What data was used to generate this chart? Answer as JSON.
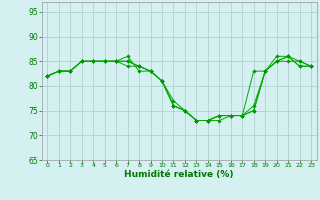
{
  "xlabel": "Humidité relative (%)",
  "bg_color": "#d4f0f0",
  "grid_color": "#aacccc",
  "line_color": "#00aa00",
  "marker_color": "#009900",
  "ylim": [
    65,
    97
  ],
  "xlim": [
    -0.5,
    23.5
  ],
  "yticks": [
    65,
    70,
    75,
    80,
    85,
    90,
    95
  ],
  "xticks": [
    0,
    1,
    2,
    3,
    4,
    5,
    6,
    7,
    8,
    9,
    10,
    11,
    12,
    13,
    14,
    15,
    16,
    17,
    18,
    19,
    20,
    21,
    22,
    23
  ],
  "series": [
    [
      82,
      83,
      83,
      85,
      85,
      85,
      85,
      86,
      83,
      83,
      81,
      76,
      75,
      73,
      73,
      73,
      74,
      74,
      75,
      83,
      86,
      86,
      84,
      84
    ],
    [
      82,
      83,
      83,
      85,
      85,
      85,
      85,
      85,
      84,
      83,
      81,
      77,
      75,
      73,
      73,
      74,
      74,
      74,
      76,
      83,
      85,
      86,
      85,
      84
    ],
    [
      82,
      83,
      83,
      85,
      85,
      85,
      85,
      85,
      84,
      83,
      81,
      76,
      75,
      73,
      73,
      74,
      74,
      74,
      75,
      83,
      85,
      86,
      84,
      84
    ],
    [
      82,
      83,
      83,
      85,
      85,
      85,
      85,
      84,
      84,
      83,
      81,
      76,
      75,
      73,
      73,
      74,
      74,
      74,
      83,
      83,
      85,
      85,
      85,
      84
    ]
  ]
}
